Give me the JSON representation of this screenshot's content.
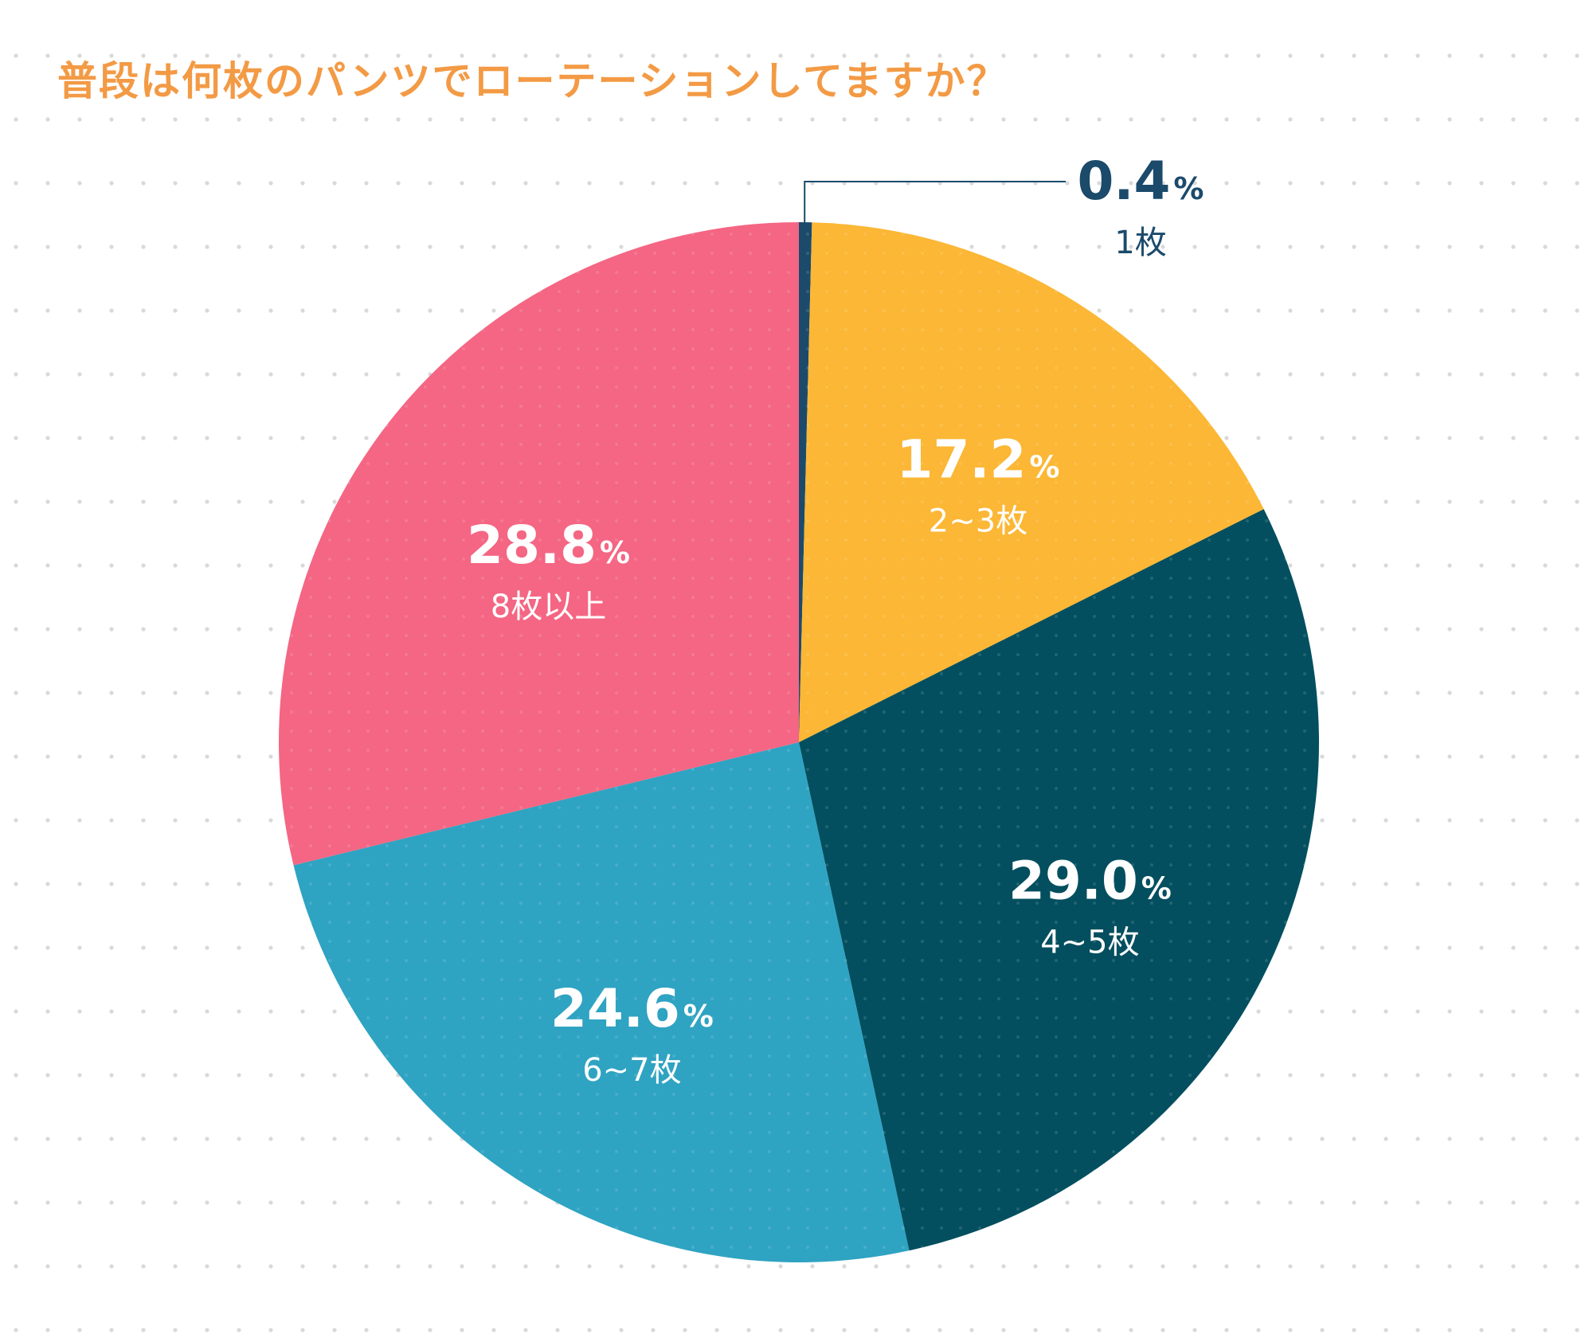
{
  "chart_data": {
    "type": "pie",
    "title": "普段は何枚のパンツでローテーションしてますか？",
    "unit": "%",
    "start_angle_deg": 0,
    "direction": "clockwise",
    "slices": [
      {
        "label": "1枚",
        "value_text": "0.4",
        "value": 0.4,
        "color": "#1b4a6b",
        "text_color": "#1b4a6b"
      },
      {
        "label": "2~3枚",
        "value_text": "17.2",
        "value": 17.2,
        "color": "#fbb735",
        "text_color": "#ffffff"
      },
      {
        "label": "4~5枚",
        "value_text": "29.0",
        "value": 29.0,
        "color": "#034f5f",
        "text_color": "#ffffff"
      },
      {
        "label": "6~7枚",
        "value_text": "24.6",
        "value": 24.6,
        "color": "#2fa3c2",
        "text_color": "#ffffff"
      },
      {
        "label": "8枚以上",
        "value_text": "28.8",
        "value": 28.8,
        "color": "#f46683",
        "text_color": "#ffffff"
      }
    ]
  }
}
